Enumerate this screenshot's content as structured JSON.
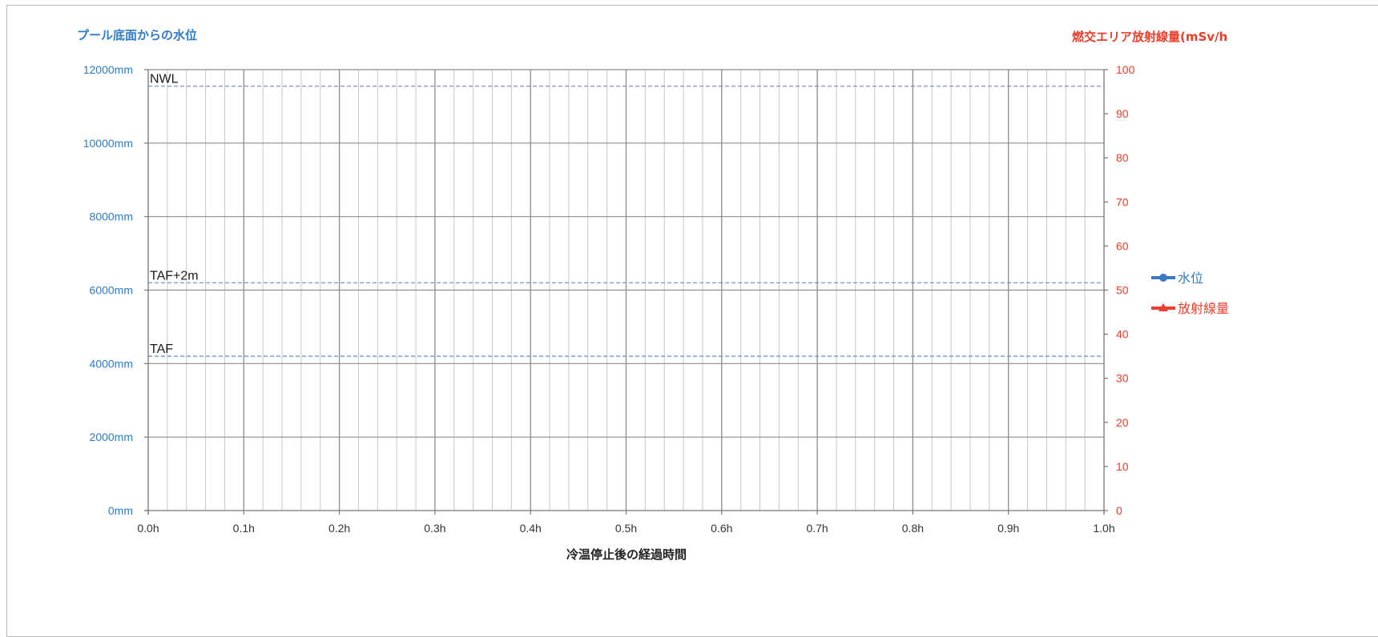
{
  "chart_data": {
    "type": "line",
    "title": "",
    "left_axis_title": "プール底面からの水位",
    "right_axis_title": "燃交エリア放射線量(mSv/h",
    "xlabel": "冷温停止後の経過時間",
    "x_ticks": [
      "0.0h",
      "0.1h",
      "0.2h",
      "0.3h",
      "0.4h",
      "0.5h",
      "0.6h",
      "0.7h",
      "0.8h",
      "0.9h",
      "1.0h"
    ],
    "xlim": [
      0,
      1.0
    ],
    "x_minor_step": 0.02,
    "y_left_ticks": [
      "0mm",
      "2000mm",
      "4000mm",
      "6000mm",
      "8000mm",
      "10000mm",
      "12000mm"
    ],
    "y_left_lim": [
      0,
      12000
    ],
    "y_right_ticks": [
      "0",
      "10",
      "20",
      "30",
      "40",
      "50",
      "60",
      "70",
      "80",
      "90",
      "100"
    ],
    "y_right_lim": [
      0,
      100
    ],
    "grid": true,
    "reference_lines": [
      {
        "label": "NWL",
        "value": 11550
      },
      {
        "label": "TAF+2m",
        "value": 6200
      },
      {
        "label": "TAF",
        "value": 4200
      }
    ],
    "series": [
      {
        "name": "水位",
        "axis": "left",
        "marker": "circle",
        "x": [],
        "values": []
      },
      {
        "name": "放射線量",
        "axis": "right",
        "marker": "triangle",
        "x": [],
        "values": []
      }
    ],
    "legend_position": "right",
    "colors": {
      "left_axis": "#2f7cc9",
      "right_axis": "#ea3f2b",
      "water_level": "#3a78c3",
      "radiation": "#ea3f2b",
      "reference_line": "#5b8fd1",
      "grid_major": "#8c8c8c",
      "grid_minor": "#c8c8c8"
    }
  }
}
